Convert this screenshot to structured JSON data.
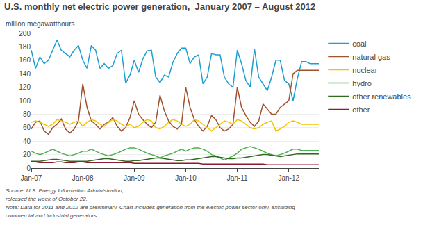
{
  "chart_data": {
    "type": "line",
    "title": "U.S. monthly net electric power generation,  January 2007 – August 2012",
    "ylabel": "million megawatthours",
    "categories": [
      "Jan-07",
      null,
      null,
      null,
      null,
      null,
      null,
      null,
      null,
      null,
      null,
      null,
      "Jan-08",
      null,
      null,
      null,
      null,
      null,
      null,
      null,
      null,
      null,
      null,
      null,
      "Jan-09",
      null,
      null,
      null,
      null,
      null,
      null,
      null,
      null,
      null,
      null,
      null,
      "Jan-10",
      null,
      null,
      null,
      null,
      null,
      null,
      null,
      null,
      null,
      null,
      null,
      "Jan-11",
      null,
      null,
      null,
      null,
      null,
      null,
      null,
      null,
      null,
      null,
      null,
      "Jan-12",
      null,
      null,
      null,
      null,
      null,
      null,
      null
    ],
    "series": [
      {
        "name": "coal",
        "color": "#1a9ed4",
        "values": [
          175,
          148,
          165,
          155,
          160,
          175,
          190,
          175,
          170,
          165,
          175,
          182,
          160,
          148,
          182,
          175,
          148,
          155,
          148,
          152,
          170,
          175,
          126,
          138,
          160,
          142,
          162,
          174,
          175,
          135,
          127,
          138,
          135,
          157,
          170,
          178,
          178,
          155,
          165,
          168,
          125,
          135,
          170,
          168,
          168,
          135,
          125,
          120,
          175,
          155,
          130,
          120,
          177,
          135,
          125,
          115,
          135,
          160,
          160,
          130,
          125,
          100,
          133,
          158,
          158,
          155,
          155,
          155
        ]
      },
      {
        "name": "natural gas",
        "color": "#a0522d",
        "values": [
          58,
          68,
          70,
          55,
          50,
          60,
          65,
          73,
          58,
          52,
          58,
          70,
          125,
          90,
          70,
          65,
          58,
          65,
          68,
          75,
          62,
          55,
          60,
          75,
          100,
          80,
          72,
          65,
          60,
          68,
          108,
          85,
          70,
          62,
          58,
          65,
          120,
          90,
          72,
          62,
          55,
          62,
          78,
          72,
          60,
          55,
          58,
          65,
          120,
          90,
          78,
          68,
          62,
          70,
          95,
          88,
          80,
          80,
          90,
          95,
          100,
          140,
          145,
          145,
          145,
          145,
          145,
          145
        ]
      },
      {
        "name": "nuclear",
        "color": "#f5c400",
        "values": [
          68,
          70,
          68,
          65,
          62,
          65,
          72,
          70,
          68,
          65,
          68,
          70,
          62,
          68,
          72,
          70,
          65,
          62,
          68,
          72,
          70,
          65,
          62,
          65,
          60,
          62,
          68,
          72,
          70,
          60,
          58,
          62,
          68,
          72,
          70,
          65,
          62,
          65,
          72,
          70,
          65,
          60,
          55,
          60,
          65,
          70,
          68,
          65,
          72,
          70,
          65,
          60,
          58,
          60,
          65,
          68,
          70,
          55,
          58,
          62,
          68,
          70,
          68,
          65,
          65,
          65,
          65,
          65
        ]
      },
      {
        "name": "hydro",
        "color": "#4caf50",
        "values": [
          25,
          22,
          20,
          22,
          25,
          28,
          25,
          22,
          20,
          18,
          20,
          22,
          25,
          25,
          28,
          25,
          22,
          20,
          18,
          20,
          22,
          25,
          28,
          30,
          30,
          28,
          25,
          22,
          20,
          18,
          15,
          18,
          20,
          22,
          25,
          28,
          25,
          28,
          30,
          30,
          28,
          25,
          20,
          18,
          15,
          12,
          15,
          18,
          22,
          28,
          30,
          32,
          30,
          28,
          25,
          22,
          20,
          18,
          20,
          22,
          25,
          28,
          28,
          26,
          26,
          26,
          26,
          26
        ]
      },
      {
        "name": "other renewables",
        "color": "#2e6b1e",
        "values": [
          10,
          10,
          10,
          11,
          12,
          13,
          13,
          12,
          11,
          10,
          10,
          10,
          10,
          10,
          11,
          12,
          13,
          14,
          14,
          13,
          12,
          11,
          10,
          10,
          11,
          11,
          12,
          13,
          14,
          15,
          15,
          14,
          13,
          12,
          11,
          11,
          12,
          12,
          13,
          14,
          15,
          16,
          17,
          17,
          16,
          15,
          14,
          14,
          15,
          15,
          16,
          17,
          18,
          19,
          20,
          20,
          19,
          18,
          17,
          18,
          19,
          20,
          21,
          21,
          21,
          21,
          21,
          21
        ]
      },
      {
        "name": "other",
        "color": "#8b1a2f",
        "values": [
          9,
          9,
          8,
          8,
          8,
          8,
          9,
          9,
          8,
          8,
          8,
          9,
          9,
          8,
          8,
          8,
          8,
          8,
          8,
          8,
          8,
          8,
          8,
          8,
          7,
          7,
          7,
          7,
          7,
          7,
          7,
          7,
          7,
          7,
          7,
          7,
          7,
          7,
          7,
          7,
          6,
          6,
          6,
          6,
          6,
          6,
          6,
          6,
          6,
          6,
          6,
          6,
          6,
          6,
          6,
          5,
          5,
          5,
          5,
          5,
          5,
          5,
          5,
          5,
          5,
          5,
          5,
          5
        ]
      }
    ],
    "ylim": [
      0,
      200
    ],
    "yticks": [
      0,
      20,
      40,
      60,
      80,
      100,
      120,
      140,
      160,
      180,
      200
    ],
    "grid": true,
    "legend": "right",
    "annotations": [
      "Source: U.S. Energy Information Administration, ",
      "released the week of October 22.",
      "Note: Data for 2011 and 2012 are preliminary. Chart includes generation from the electric power sector only, excluding",
      "commercial and industrial generators."
    ]
  }
}
